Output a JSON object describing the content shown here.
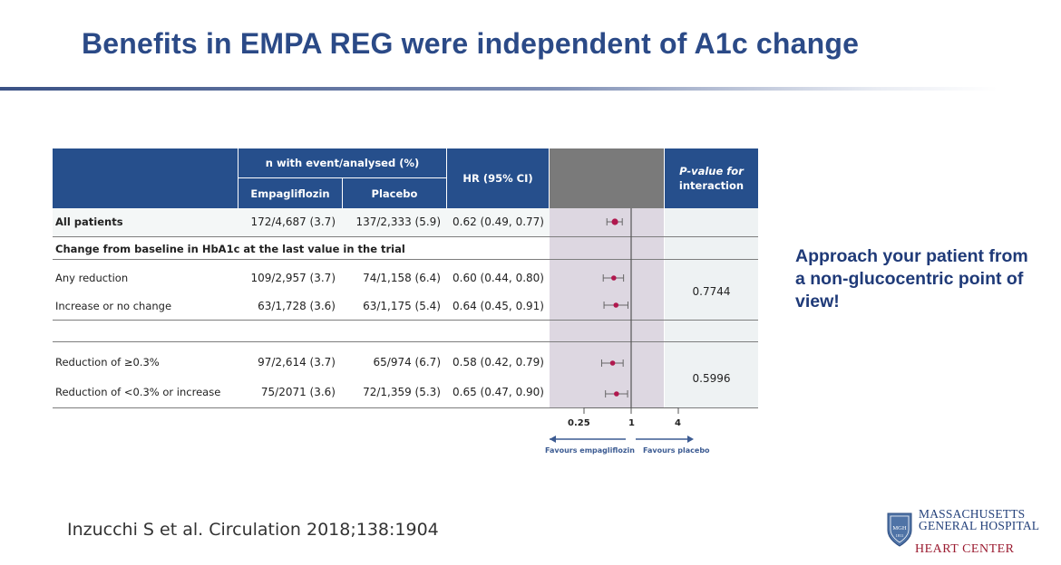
{
  "slide": {
    "title": "Benefits in EMPA REG were independent of A1c change",
    "side_note": "Approach your patient from a non-glucocentric point of view!",
    "citation": "Inzucchi S et al. Circulation 2018;138:1904"
  },
  "logo": {
    "line1": "MASSACHUSETTS",
    "line2": "GENERAL HOSPITAL",
    "line3": "HEART CENTER",
    "shield_text": "MGH",
    "shield_year": "1811",
    "icon": "mgh-shield-icon"
  },
  "table": {
    "header": {
      "group": "n with event/analysed (%)",
      "col_empa": "Empagliflozin",
      "col_placebo": "Placebo",
      "col_hr": "HR (95% CI)",
      "col_p_line1": "P-value for",
      "col_p_line2": "interaction"
    },
    "rows": [
      {
        "label": "All patients",
        "empa": "172/4,687 (3.7)",
        "placebo": "137/2,333 (5.9)",
        "hr": "0.62 (0.49, 0.77)",
        "bold": true
      },
      {
        "label": "Change from baseline in HbA1c at the last value in the trial",
        "section": true
      },
      {
        "label": "Any reduction",
        "empa": "109/2,957 (3.7)",
        "placebo": "74/1,158 (6.4)",
        "hr": "0.60 (0.44, 0.80)"
      },
      {
        "label": "Increase or no change",
        "empa": "63/1,728 (3.6)",
        "placebo": "63/1,175 (5.4)",
        "hr": "0.64 (0.45, 0.91)"
      },
      {
        "label": "Reduction of ≥0.3%",
        "empa": "97/2,614 (3.7)",
        "placebo": "65/974 (6.7)",
        "hr": "0.58 (0.42, 0.79)"
      },
      {
        "label": "Reduction of <0.3% or increase",
        "empa": "75/2071 (3.6)",
        "placebo": "72/1,359 (5.3)",
        "hr": "0.65 (0.47, 0.90)"
      }
    ],
    "p_values": [
      "0.7744",
      "0.5996"
    ],
    "axis": {
      "ticks": [
        "0.25",
        "1",
        "4"
      ],
      "favours_left": "Favours empagliflozin",
      "favours_right": "Favours placebo"
    }
  },
  "chart_data": {
    "type": "forest",
    "scale": "log",
    "xlim": [
      0.25,
      4
    ],
    "reference": 1,
    "marker_color": "#b0184e",
    "points": [
      {
        "label": "All patients",
        "hr": 0.62,
        "lo": 0.49,
        "hi": 0.77
      },
      {
        "label": "Any reduction",
        "hr": 0.6,
        "lo": 0.44,
        "hi": 0.8
      },
      {
        "label": "Increase or no change",
        "hr": 0.64,
        "lo": 0.45,
        "hi": 0.91
      },
      {
        "label": "Reduction of ≥0.3%",
        "hr": 0.58,
        "lo": 0.42,
        "hi": 0.79
      },
      {
        "label": "Reduction of <0.3% or increase",
        "hr": 0.65,
        "lo": 0.47,
        "hi": 0.9
      }
    ]
  },
  "colors": {
    "title": "#2b4a87",
    "header_bg": "#264f8c",
    "plot_header_bg": "#7a7a7a",
    "side_note": "#1f3a78",
    "heart_center": "#9b1b30"
  }
}
